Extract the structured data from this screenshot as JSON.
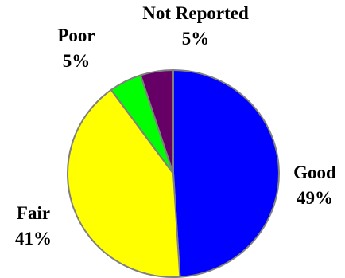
{
  "chart_data": {
    "type": "pie",
    "title": "",
    "start_angle_deg": 0,
    "direction": "clockwise",
    "slices": [
      {
        "label": "Good",
        "value": 49,
        "display": "49%",
        "color": "#0000FF"
      },
      {
        "label": "Fair",
        "value": 41,
        "display": "41%",
        "color": "#FFFF00"
      },
      {
        "label": "Poor",
        "value": 5,
        "display": "5%",
        "color": "#00FF00"
      },
      {
        "label": "Not Reported",
        "value": 5,
        "display": "5%",
        "color": "#660066"
      }
    ]
  }
}
